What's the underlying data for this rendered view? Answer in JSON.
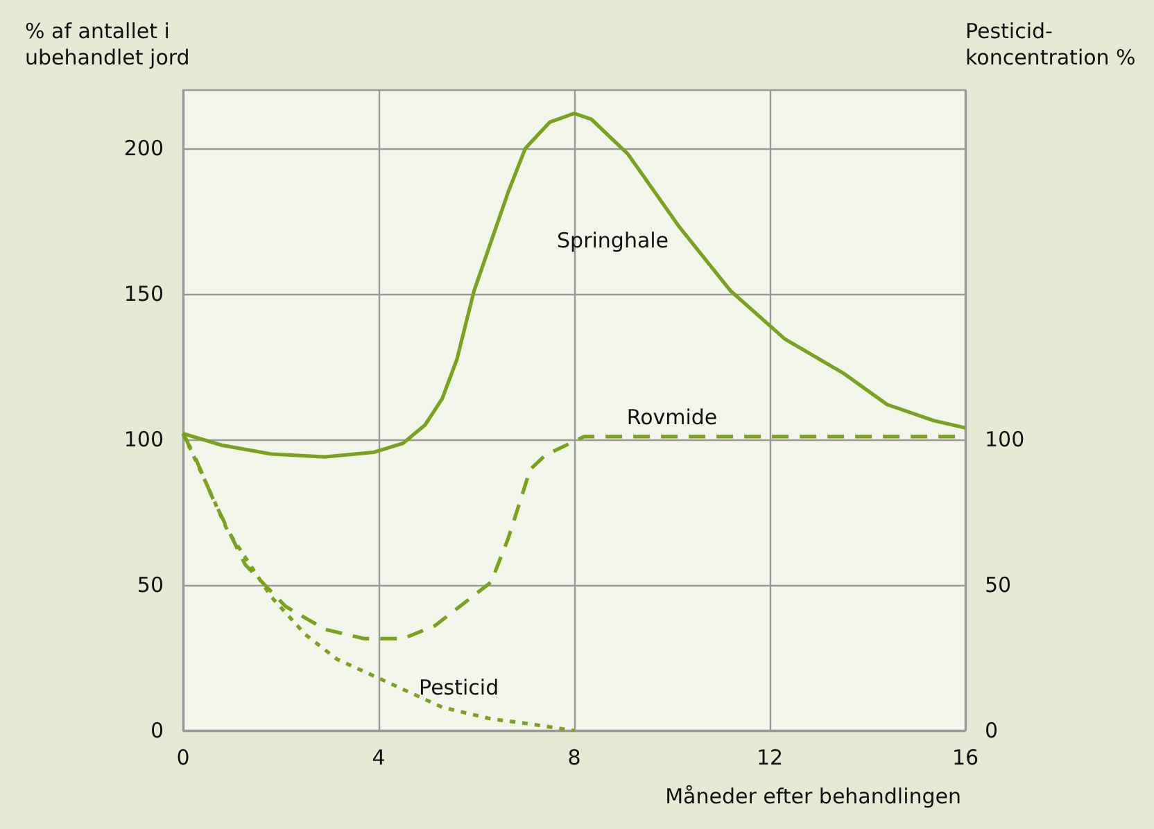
{
  "chart_data": {
    "type": "line",
    "ylabel": "% af antallet i\nubehandlet jord",
    "y2label": "Pesticid-\nkoncentration %",
    "xlabel": "Måneder efter behandlingen",
    "xlim": [
      0,
      16
    ],
    "xticks": [
      0,
      4,
      8,
      12,
      16
    ],
    "ylim": [
      0,
      220
    ],
    "yticks": [
      0,
      50,
      100,
      150,
      200
    ],
    "y2lim": [
      0,
      220
    ],
    "y2ticks": [
      0,
      50,
      100
    ],
    "grid": true,
    "legend": false,
    "marker": "none",
    "series": [
      {
        "name": "Springhale",
        "color": "#7aa21e",
        "line_style": "solid",
        "x": [
          0,
          0.8,
          1.8,
          2.9,
          3.9,
          4.5,
          4.95,
          5.3,
          5.6,
          5.95,
          6.3,
          6.65,
          7.0,
          7.5,
          8.0,
          8.35,
          9.1,
          10.15,
          11.2,
          12.3,
          13.5,
          14.4,
          15.35,
          16
        ],
        "values": [
          102,
          98,
          95,
          94,
          95.6,
          98.7,
          105,
          114,
          127.5,
          151,
          168,
          185,
          200,
          209,
          212,
          210,
          198,
          173,
          151,
          134.6,
          122.8,
          112,
          106.5,
          104
        ]
      },
      {
        "name": "Rovmide",
        "color": "#7aa21e",
        "line_style": "dashed",
        "x": [
          0,
          0.23,
          0.6,
          1.27,
          2.1,
          2.9,
          3.7,
          4.5,
          5.15,
          6.3,
          6.65,
          7.1,
          7.4,
          8.2,
          10,
          12,
          14,
          16
        ],
        "values": [
          102,
          94.5,
          80,
          57,
          42.6,
          34.8,
          31.6,
          31.6,
          36,
          51,
          66,
          89.7,
          94.5,
          101,
          101,
          101,
          101,
          101
        ]
      },
      {
        "name": "Pesticid",
        "color": "#7aa21e",
        "line_style": "dotted",
        "axis": "y2",
        "x": [
          0,
          0.5,
          0.9,
          1.8,
          2.5,
          3.15,
          4,
          5.3,
          6.3,
          7,
          8
        ],
        "values": [
          102,
          84,
          69,
          46,
          33,
          24.5,
          18,
          8,
          4,
          2.5,
          0
        ]
      }
    ]
  }
}
